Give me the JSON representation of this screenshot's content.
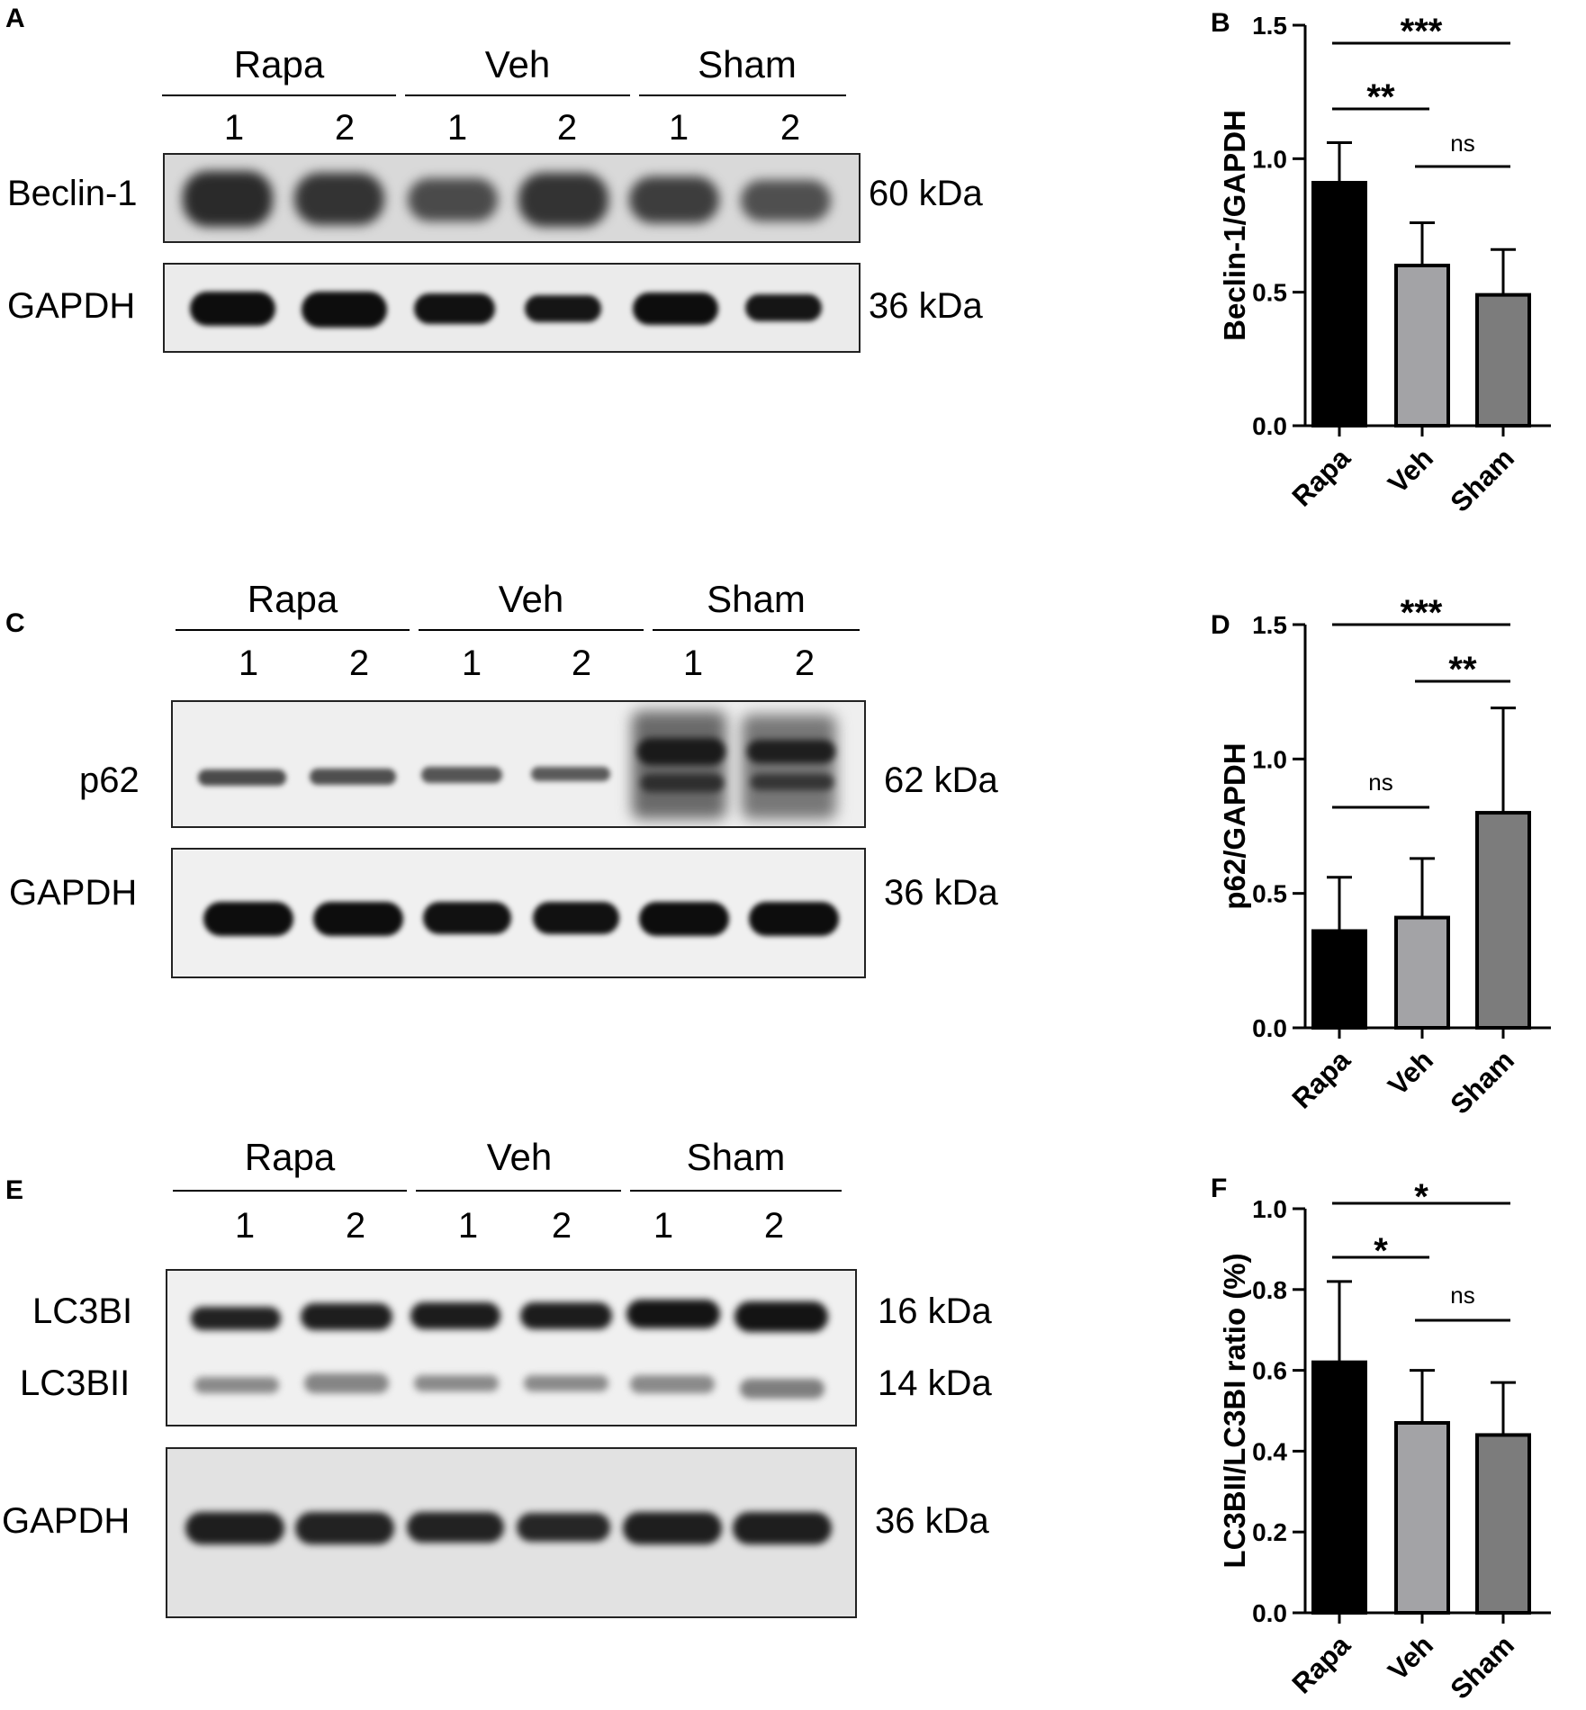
{
  "blots": [
    {
      "panel": "A",
      "groups": [
        "Rapa",
        "Veh",
        "Sham"
      ],
      "lanes": [
        "1",
        "2",
        "1",
        "2",
        "1",
        "2"
      ],
      "proteins": [
        "Beclin-1",
        "GAPDH"
      ],
      "sizes": [
        "60 kDa",
        "36 kDa"
      ]
    },
    {
      "panel": "C",
      "groups": [
        "Rapa",
        "Veh",
        "Sham"
      ],
      "lanes": [
        "1",
        "2",
        "1",
        "2",
        "1",
        "2"
      ],
      "proteins": [
        "p62",
        "GAPDH"
      ],
      "sizes": [
        "62 kDa",
        "36 kDa"
      ]
    },
    {
      "panel": "E",
      "groups": [
        "Rapa",
        "Veh",
        "Sham"
      ],
      "lanes": [
        "1",
        "2",
        "1",
        "2",
        "1",
        "2"
      ],
      "proteins": [
        "LC3BI",
        "LC3BII",
        "GAPDH"
      ],
      "sizes": [
        "16 kDa",
        "14 kDa",
        "36 kDa"
      ]
    }
  ],
  "chart_data": [
    {
      "panel": "B",
      "type": "bar",
      "categories": [
        "Rapa",
        "Veh",
        "Sham"
      ],
      "values": [
        0.91,
        0.6,
        0.49
      ],
      "errors": [
        0.15,
        0.16,
        0.17
      ],
      "ylabel": "Beclin-1/GAPDH",
      "ylim": [
        0,
        1.5
      ],
      "yticks": [
        "0.0",
        "0.5",
        "1.0",
        "1.5"
      ],
      "tick_values": [
        0,
        0.5,
        1.0,
        1.5
      ],
      "bar_colors": [
        "#000000",
        "#a3a3a6",
        "#7c7c7c"
      ],
      "significance": [
        {
          "from": 0,
          "to": 2,
          "label": "***"
        },
        {
          "from": 0,
          "to": 1,
          "label": "**"
        },
        {
          "from": 1,
          "to": 2,
          "label": "ns"
        }
      ]
    },
    {
      "panel": "D",
      "type": "bar",
      "categories": [
        "Rapa",
        "Veh",
        "Sham"
      ],
      "values": [
        0.36,
        0.41,
        0.8
      ],
      "errors": [
        0.2,
        0.22,
        0.39
      ],
      "ylabel": "p62/GAPDH",
      "ylim": [
        0,
        1.5
      ],
      "yticks": [
        "0.0",
        "0.5",
        "1.0",
        "1.5"
      ],
      "tick_values": [
        0,
        0.5,
        1.0,
        1.5
      ],
      "bar_colors": [
        "#000000",
        "#a3a3a6",
        "#7c7c7c"
      ],
      "significance": [
        {
          "from": 0,
          "to": 2,
          "label": "***"
        },
        {
          "from": 1,
          "to": 2,
          "label": "**"
        },
        {
          "from": 0,
          "to": 1,
          "label": "ns"
        }
      ]
    },
    {
      "panel": "F",
      "type": "bar",
      "categories": [
        "Rapa",
        "Veh",
        "Sham"
      ],
      "values": [
        0.62,
        0.47,
        0.44
      ],
      "errors": [
        0.2,
        0.13,
        0.13
      ],
      "ylabel": "LC3BII/LC3BI ratio (%)",
      "ylim": [
        0,
        1.0
      ],
      "yticks": [
        "0.0",
        "0.2",
        "0.4",
        "0.6",
        "0.8",
        "1.0"
      ],
      "tick_values": [
        0,
        0.2,
        0.4,
        0.6,
        0.8,
        1.0
      ],
      "bar_colors": [
        "#000000",
        "#a3a3a6",
        "#7c7c7c"
      ],
      "significance": [
        {
          "from": 0,
          "to": 2,
          "label": "*"
        },
        {
          "from": 0,
          "to": 1,
          "label": "*"
        },
        {
          "from": 1,
          "to": 2,
          "label": "ns"
        }
      ]
    }
  ]
}
